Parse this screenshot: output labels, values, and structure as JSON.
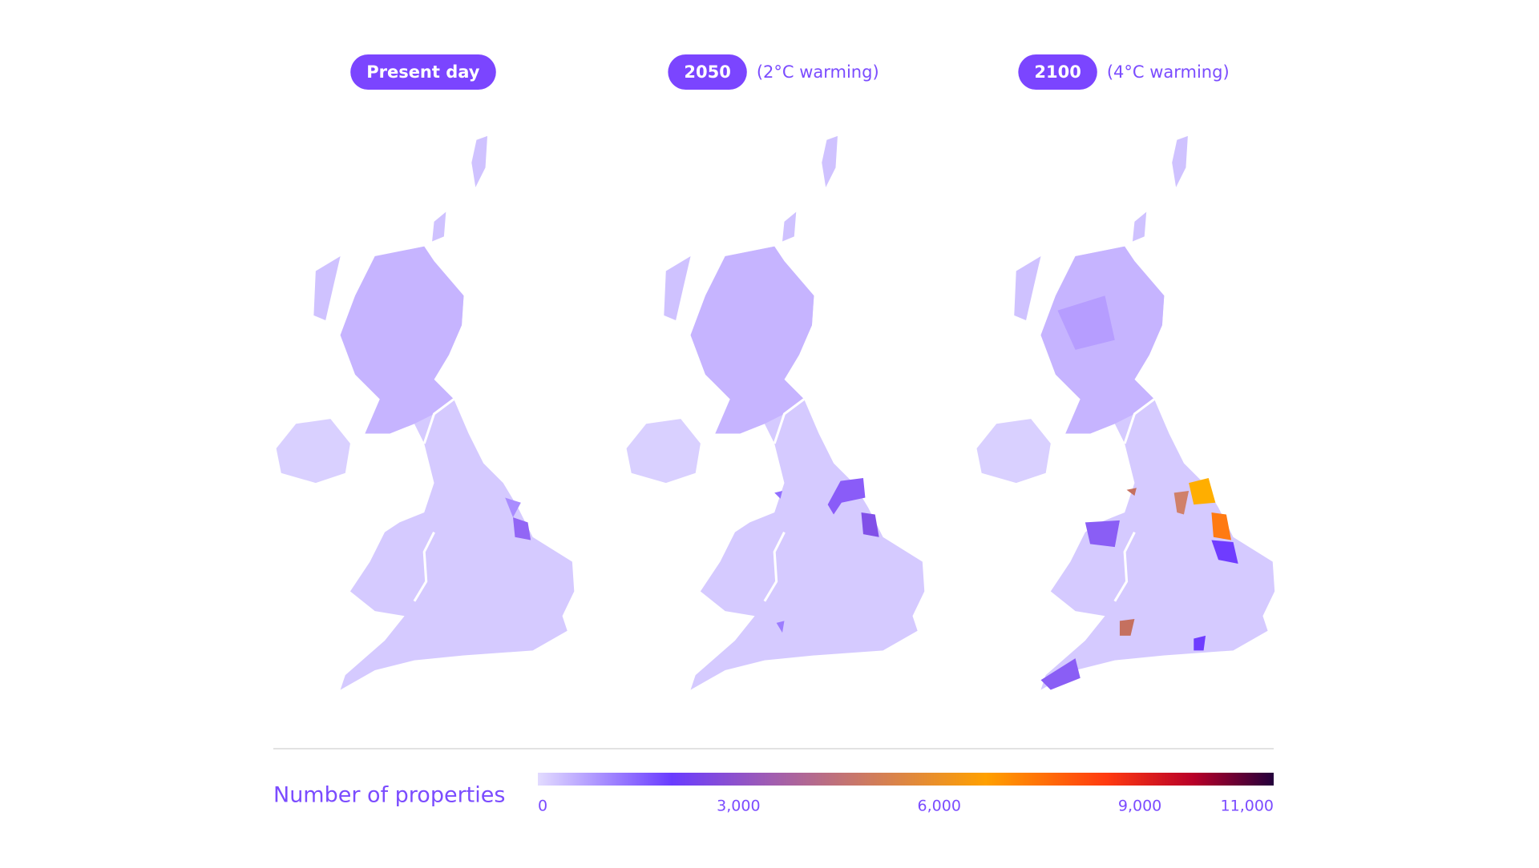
{
  "panels": [
    {
      "label": "Present day"
    },
    {
      "label": "2050",
      "note": "(2°C warming)"
    },
    {
      "label": "2100",
      "note": "(4°C warming)"
    }
  ],
  "legend": {
    "title": "Number of properties",
    "range": [
      0,
      11000
    ],
    "ticks": [
      0,
      {
        "value": 3000,
        "label": "3,000"
      },
      {
        "value": 6000,
        "label": "6,000"
      },
      {
        "value": 9000,
        "label": "9,000"
      },
      {
        "value": 11000,
        "label": "11,000"
      }
    ],
    "colorscale": [
      {
        "value": 0,
        "color": "#e2dbff"
      },
      {
        "value": 2000,
        "color": "#6a3cff"
      },
      {
        "value": 3500,
        "color": "#a15db0"
      },
      {
        "value": 5000,
        "color": "#d07c5c"
      },
      {
        "value": 6700,
        "color": "#ffa000"
      },
      {
        "value": 8500,
        "color": "#ff3a10"
      },
      {
        "value": 9800,
        "color": "#b80028"
      },
      {
        "value": 11000,
        "color": "#24003c"
      }
    ]
  }
}
